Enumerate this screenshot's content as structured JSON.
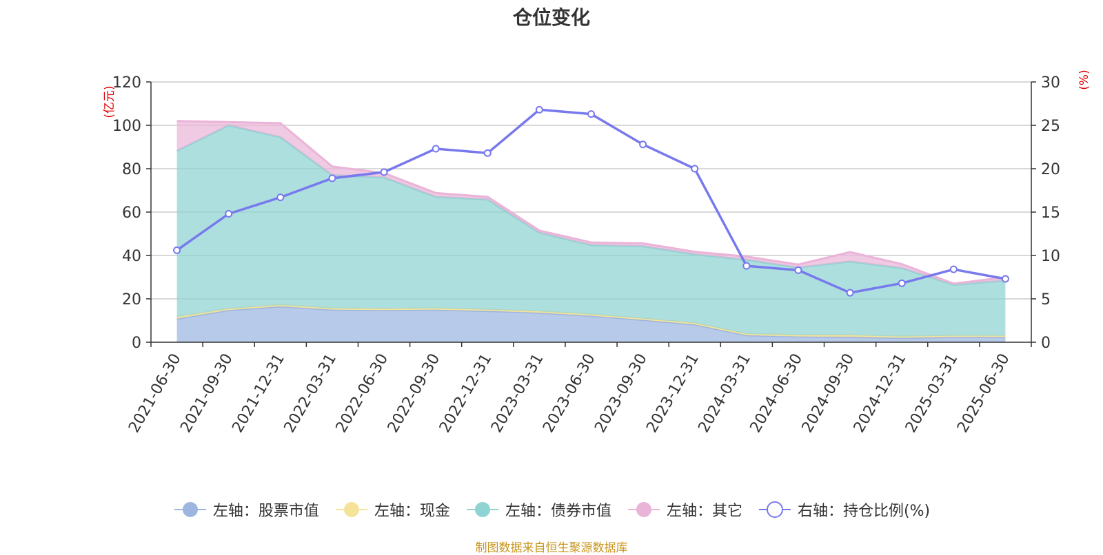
{
  "chart_data": {
    "type": "area",
    "title": "仓位变化",
    "x": [
      "2021-06-30",
      "2021-09-30",
      "2021-12-31",
      "2022-03-31",
      "2022-06-30",
      "2022-09-30",
      "2022-12-31",
      "2023-03-31",
      "2023-06-30",
      "2023-09-30",
      "2023-12-31",
      "2024-03-31",
      "2024-06-30",
      "2024-09-30",
      "2024-12-31",
      "2025-03-31",
      "2025-06-30"
    ],
    "left_axis": {
      "label": "(亿元)",
      "ylim": [
        0,
        120
      ],
      "ticks": [
        0,
        20,
        40,
        60,
        80,
        100,
        120
      ]
    },
    "right_axis": {
      "label": "(%)",
      "ylim": [
        0,
        30
      ],
      "ticks": [
        0,
        5,
        10,
        15,
        20,
        25,
        30
      ]
    },
    "stacked_series": [
      {
        "name": "左轴：股票市值",
        "color": "#9db6e0",
        "values": [
          10.8,
          14.8,
          16.5,
          15.0,
          14.8,
          15.0,
          14.4,
          13.6,
          12.2,
          10.3,
          8.2,
          3.2,
          2.6,
          2.4,
          2.0,
          2.4,
          2.4
        ]
      },
      {
        "name": "左轴：现金",
        "color": "#f6e39a",
        "values": [
          0.8,
          0.6,
          0.6,
          0.6,
          0.6,
          0.6,
          0.6,
          0.6,
          0.6,
          0.6,
          0.6,
          0.6,
          0.6,
          0.8,
          0.6,
          0.6,
          0.6
        ]
      },
      {
        "name": "左轴：债券市值",
        "color": "#8fd3d3",
        "values": [
          76.6,
          84.6,
          77.4,
          61.4,
          60.6,
          51.4,
          50.8,
          36.3,
          32.0,
          33.4,
          31.7,
          34.2,
          31.2,
          34.0,
          31.6,
          23.5,
          25.4
        ]
      },
      {
        "name": "左轴：其它",
        "color": "#eab4d8",
        "values": [
          13.8,
          1.5,
          6.5,
          4.0,
          2.0,
          1.8,
          1.2,
          1.0,
          1.2,
          1.3,
          1.2,
          1.5,
          1.4,
          4.4,
          1.8,
          0.5,
          1.5
        ]
      }
    ],
    "line_series": {
      "name": "右轴：持仓比例(%)",
      "color": "#7779ec",
      "axis": "right",
      "values": [
        10.6,
        14.8,
        16.7,
        18.9,
        19.6,
        22.3,
        21.8,
        26.8,
        26.3,
        22.8,
        20.0,
        8.8,
        8.3,
        5.7,
        6.8,
        8.4,
        7.3
      ]
    },
    "grid": true,
    "legend_position": "bottom"
  },
  "legend": [
    {
      "label": "左轴：股票市值",
      "color": "#9db6e0",
      "marker": "filled"
    },
    {
      "label": "左轴：现金",
      "color": "#f6e39a",
      "marker": "filled"
    },
    {
      "label": "左轴：债券市值",
      "color": "#8fd3d3",
      "marker": "filled"
    },
    {
      "label": "左轴：其它",
      "color": "#eab4d8",
      "marker": "filled"
    },
    {
      "label": "右轴：持仓比例(%)",
      "color": "#7779ec",
      "marker": "hollow"
    }
  ],
  "source_note": "制图数据来自恒生聚源数据库"
}
